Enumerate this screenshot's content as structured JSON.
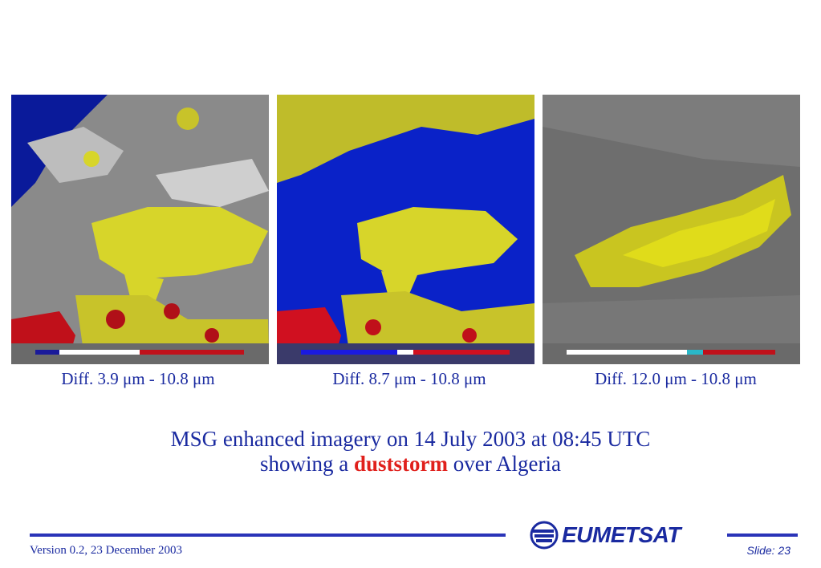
{
  "panels": [
    {
      "caption": "Diff. 3.9 μm - 10.8 μm",
      "image": "enhanced-satellite-image-ir39-ir108",
      "colors": {
        "background": "#8a8a8a",
        "sea": "#0a1a9a",
        "cloud": "#d7d52a",
        "hot": "#c0101a"
      }
    },
    {
      "caption": "Diff. 8.7 μm - 10.8 μm",
      "image": "enhanced-satellite-image-ir87-ir108",
      "colors": {
        "background": "#0a22c8",
        "cloud": "#d7d52a",
        "hot": "#c0101a"
      }
    },
    {
      "caption": "Diff. 12.0 μm - 10.8 μm",
      "image": "enhanced-satellite-image-ir120-ir108",
      "colors": {
        "background": "#6e6e6e",
        "dust": "#d8d41c"
      }
    }
  ],
  "headline": {
    "line1": "MSG enhanced imagery on 14 July 2003 at 08:45 UTC",
    "line2_before": "showing a ",
    "line2_highlight": "duststorm",
    "line2_after": " over Algeria"
  },
  "footer": {
    "version": "Version 0.2, 23 December 2003",
    "slide": "Slide: 23",
    "logo_text": "EUMETSAT",
    "logo_icon": "eumetsat-globe-icon"
  },
  "theme": {
    "text_blue": "#1a2aa0",
    "highlight_red": "#e0201c",
    "rule_blue": "#2a34b8"
  }
}
